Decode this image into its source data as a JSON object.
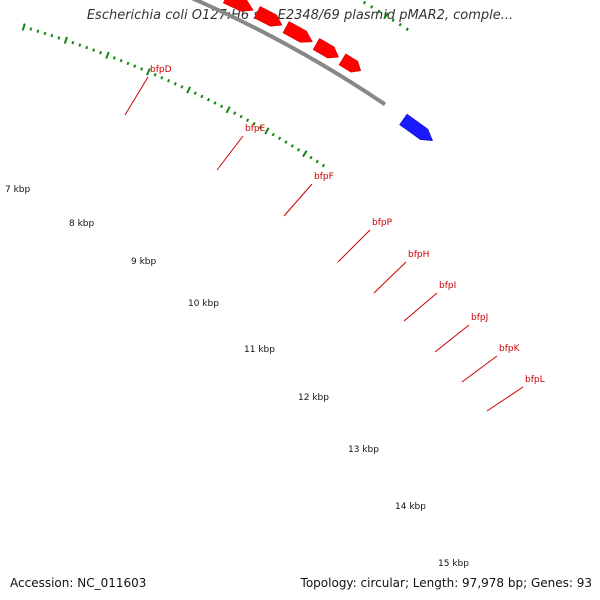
{
  "title": "Escherichia coli O127:H6 str. E2348/69 plasmid pMAR2, comple...",
  "footer": {
    "accession": "Accession: NC_011603",
    "summary": "Topology: circular; Length: 97,978 bp; Genes: 93"
  },
  "colors": {
    "gene_red": "#ff0000",
    "gene_blue": "#1a1aff",
    "operon_light": "#99ee11",
    "operon_dark": "#338822",
    "operon_olive": "#667722",
    "backbone": "#888888",
    "tick": "#118811",
    "label_red": "#cc0000"
  },
  "scale_labels": [
    "7 kbp",
    "8 kbp",
    "9 kbp",
    "10 kbp",
    "11 kbp",
    "12 kbp",
    "13 kbp",
    "14 kbp",
    "15 kbp"
  ],
  "genes": [
    {
      "name": "bfpD"
    },
    {
      "name": "bfpE"
    },
    {
      "name": "bfpF"
    },
    {
      "name": "bfpP"
    },
    {
      "name": "bfpH"
    },
    {
      "name": "bfpI"
    },
    {
      "name": "bfpJ"
    },
    {
      "name": "bfpK"
    },
    {
      "name": "bfpL"
    }
  ]
}
